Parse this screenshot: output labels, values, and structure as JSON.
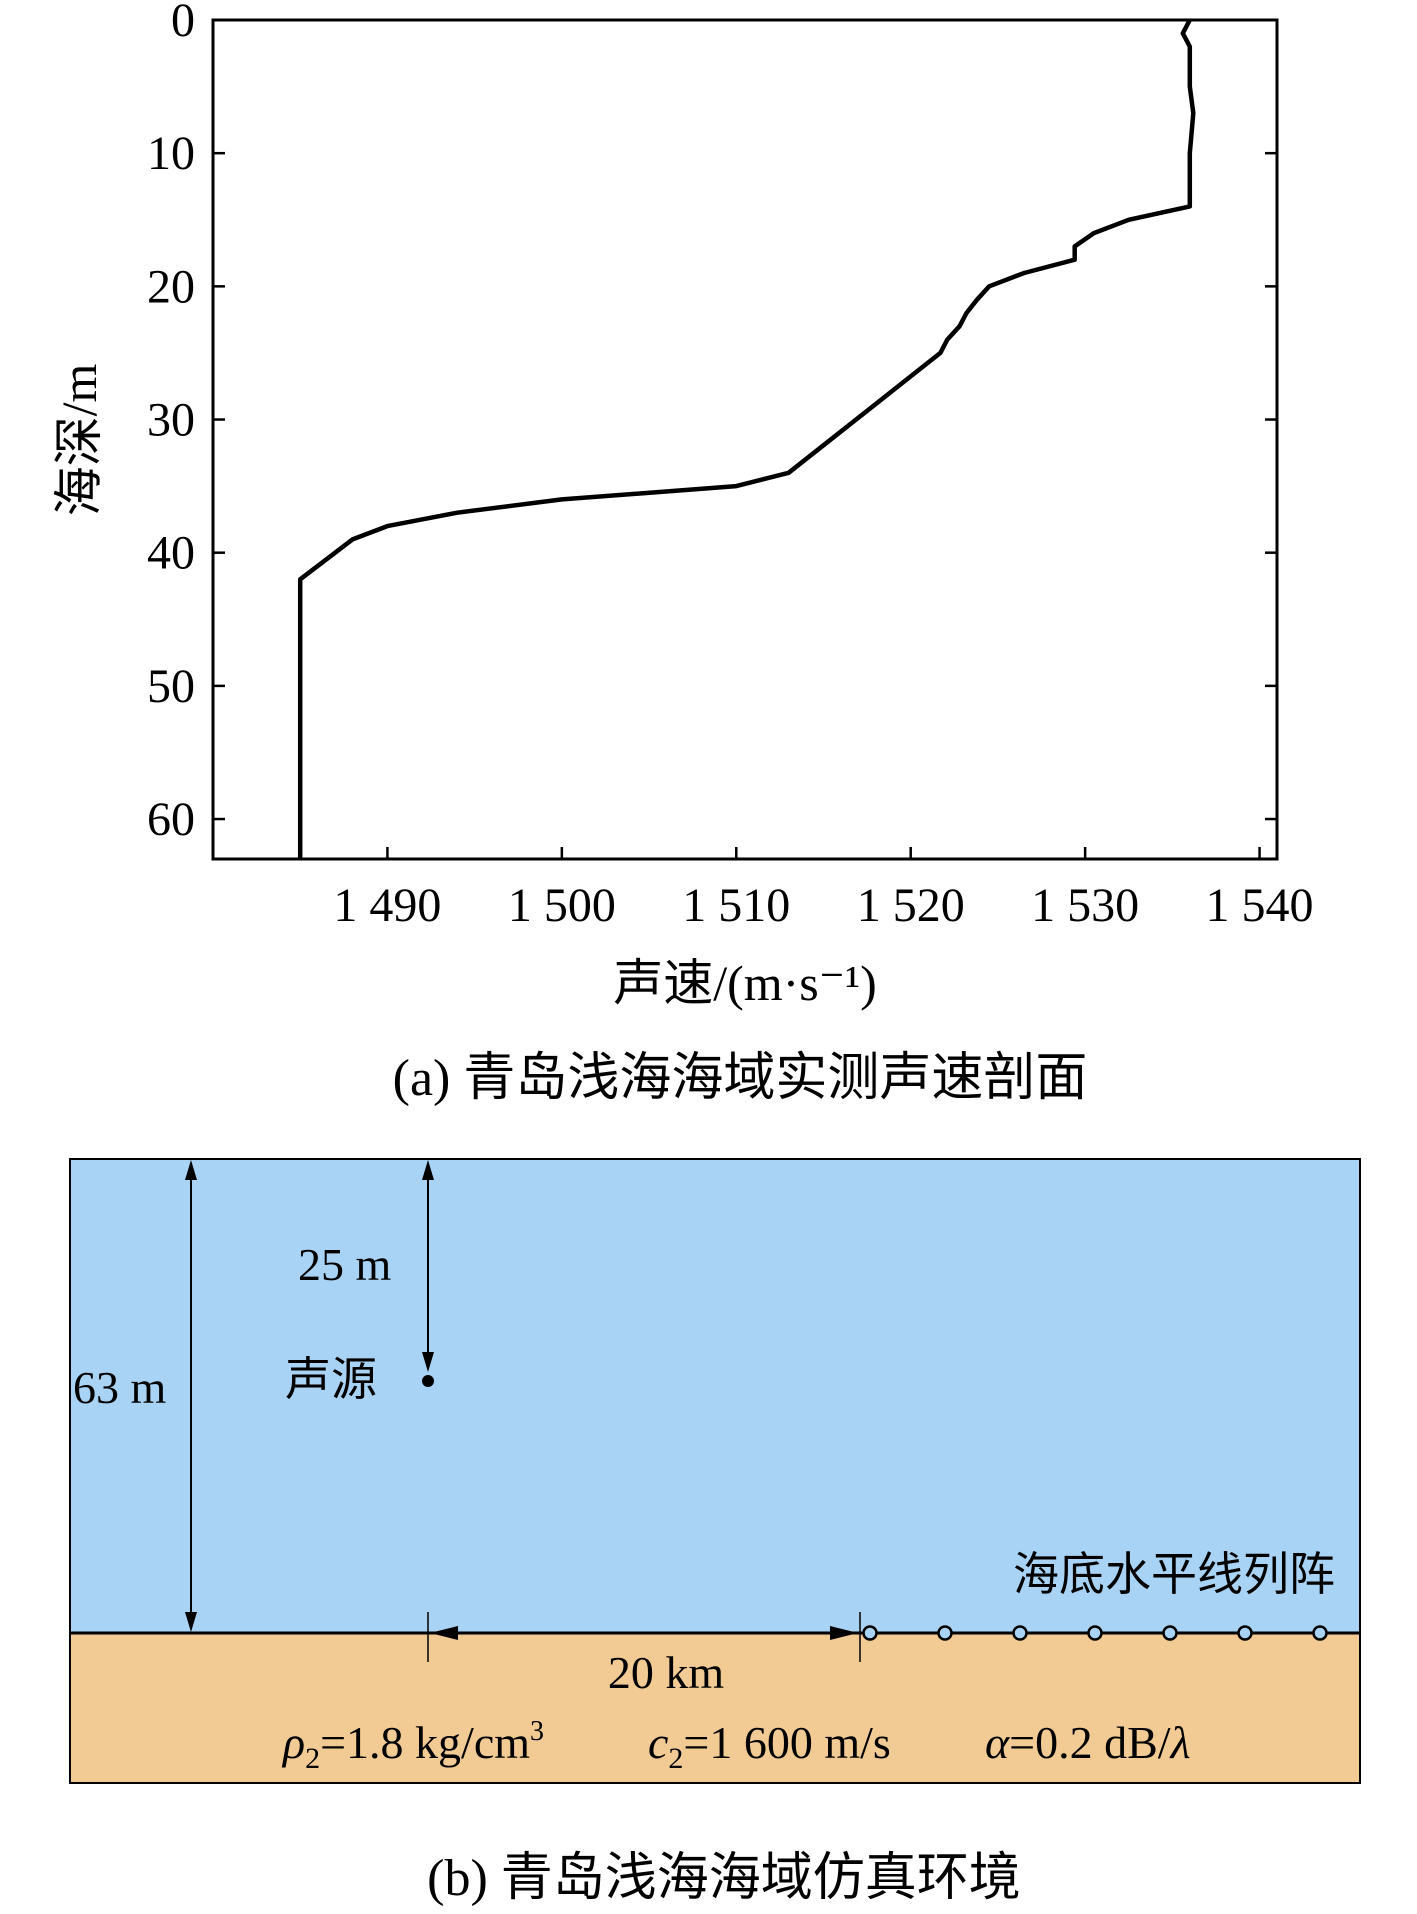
{
  "chart_data": {
    "type": "line",
    "xlabel": "声速/(m·s⁻¹)",
    "ylabel": "海深/m",
    "caption": "(a) 青岛浅海海域实测声速剖面",
    "xlim": [
      1480,
      1541
    ],
    "ylim": [
      0,
      63
    ],
    "y_reversed": true,
    "xticks": [
      1490,
      1500,
      1510,
      1520,
      1530,
      1540
    ],
    "xtick_labels": [
      "1 490",
      "1 500",
      "1 510",
      "1 520",
      "1 530",
      "1 540"
    ],
    "yticks": [
      0,
      10,
      20,
      30,
      40,
      50,
      60
    ],
    "ytick_labels": [
      "0",
      "10",
      "20",
      "30",
      "40",
      "50",
      "60"
    ],
    "grid": false,
    "series": [
      {
        "x": [
          1536.0,
          1535.6,
          1536.0,
          1536.0,
          1536.2,
          1536.0,
          1536.0,
          1536.0,
          1532.5,
          1530.5,
          1529.4,
          1529.4,
          1526.5,
          1524.5,
          1523.8,
          1523.2,
          1522.8,
          1522.1,
          1521.7,
          1513.0,
          1510.0,
          1500.0,
          1494.0,
          1490.0,
          1488.0,
          1485.0,
          1485.0
        ],
        "y": [
          0,
          1,
          2,
          5,
          7,
          10,
          12,
          14,
          15,
          16,
          17,
          18,
          19,
          20,
          21,
          22,
          23,
          24,
          25,
          34,
          35,
          36,
          37,
          38,
          39,
          42,
          63
        ]
      }
    ]
  },
  "scenario": {
    "caption": "(b) 青岛浅海海域仿真环境",
    "water_depth_label": "63 m",
    "source_depth_label": "25 m",
    "source_label": "声源",
    "array_label": "海底水平线列阵",
    "range_label": "20 km",
    "bottom_params": {
      "rho_sym": "ρ",
      "rho_sub": "2",
      "rho_value": "=1.8 kg/cm",
      "rho_sup": "3",
      "c_sym": "c",
      "c_sub": "2",
      "c_value": "=1 600 m/s",
      "alpha_sym": "α",
      "alpha_value": "=0.2 dB/",
      "lambda_sym": "λ"
    },
    "array_elements": 7,
    "colors": {
      "water": "#a9d3f5",
      "seabed": "#f2ca94",
      "line": "#000000"
    }
  }
}
